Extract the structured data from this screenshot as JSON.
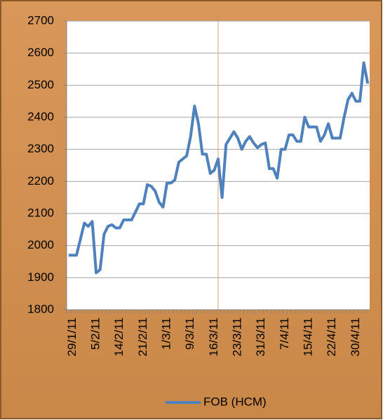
{
  "chart_data": {
    "type": "line",
    "categories": [
      null,
      "29/1/11",
      null,
      null,
      null,
      null,
      null,
      "5/2/11",
      null,
      null,
      null,
      null,
      null,
      "14/2/11",
      null,
      null,
      null,
      null,
      null,
      "21/2/11",
      null,
      null,
      null,
      null,
      null,
      "1/3/11",
      null,
      null,
      null,
      null,
      null,
      "9/3/11",
      null,
      null,
      null,
      null,
      null,
      "16/3/11",
      null,
      null,
      null,
      null,
      null,
      "23/3/11",
      null,
      null,
      null,
      null,
      null,
      "31/3/11",
      null,
      null,
      null,
      null,
      null,
      "7/4/11",
      null,
      null,
      null,
      null,
      null,
      "15/4/11",
      null,
      null,
      null,
      null,
      null,
      "22/4/11",
      null,
      null,
      null,
      null,
      null,
      "30/4/11",
      null,
      null,
      null
    ],
    "series": [
      {
        "name": "FOB (HCM)",
        "color": "#4f81bd",
        "values": [
          1970,
          1970,
          1970,
          2020,
          2070,
          2060,
          2075,
          1915,
          1925,
          2035,
          2060,
          2065,
          2055,
          2055,
          2080,
          2080,
          2080,
          2105,
          2130,
          2130,
          2190,
          2185,
          2170,
          2135,
          2120,
          2195,
          2195,
          2205,
          2260,
          2270,
          2280,
          2340,
          2435,
          2380,
          2285,
          2285,
          2225,
          2235,
          2270,
          2150,
          2315,
          2335,
          2355,
          2335,
          2300,
          2325,
          2340,
          2320,
          2305,
          2315,
          2320,
          2240,
          2240,
          2210,
          2300,
          2300,
          2345,
          2345,
          2325,
          2325,
          2400,
          2370,
          2370,
          2370,
          2325,
          2345,
          2380,
          2335,
          2335,
          2335,
          2400,
          2455,
          2475,
          2450,
          2450,
          2570,
          2505
        ]
      }
    ],
    "ylim": [
      1800,
      2700
    ],
    "yticks": [
      1800,
      1900,
      2000,
      2100,
      2200,
      2300,
      2400,
      2500,
      2600,
      2700
    ],
    "grid": true,
    "legend": "bottom"
  }
}
